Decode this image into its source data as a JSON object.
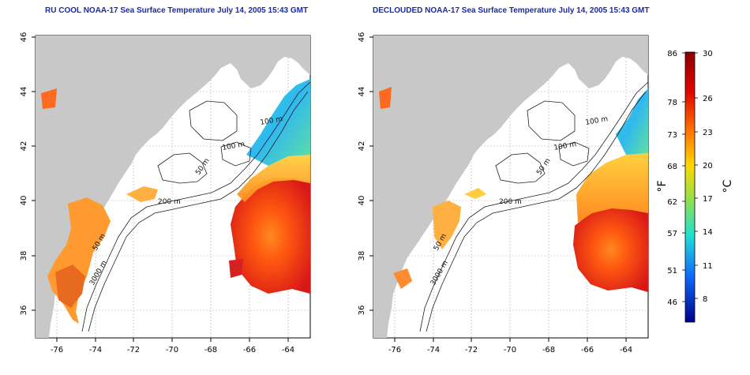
{
  "titles": {
    "left": "RU COOL NOAA-17 Sea Surface Temperature July 14, 2005 15:43 GMT",
    "right": "DECLOUDED NOAA-17 Sea Surface Temperature July 14, 2005 15:43 GMT"
  },
  "map": {
    "lon_ticks": [
      "-76",
      "-74",
      "-72",
      "-70",
      "-68",
      "-66",
      "-64"
    ],
    "lat_ticks": [
      "36",
      "38",
      "40",
      "42",
      "44",
      "46"
    ],
    "contour_labels": [
      "100 m",
      "100 m",
      "50 m",
      "200 m",
      "50 m",
      "3000 m"
    ]
  },
  "colorbar": {
    "f_label": "°F",
    "c_label": "°C",
    "f_ticks": [
      "86",
      "78",
      "73",
      "68",
      "62",
      "57",
      "51",
      "46"
    ],
    "c_ticks": [
      "30",
      "26",
      "23",
      "20",
      "17",
      "14",
      "11",
      "8"
    ]
  },
  "colors": {
    "land": "#c8c8c8",
    "title": "#1a2aa8",
    "warm": "#d42020",
    "cool": "#30c8e8"
  }
}
